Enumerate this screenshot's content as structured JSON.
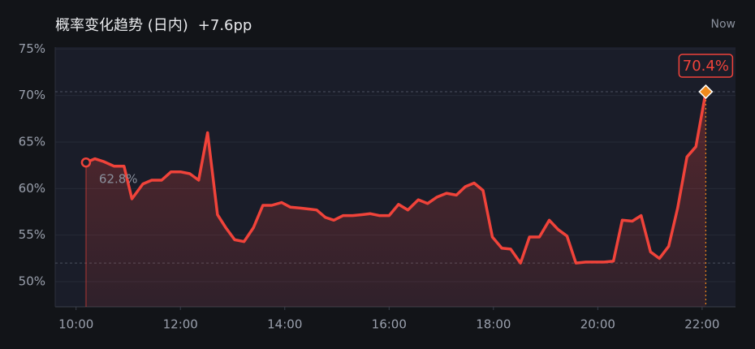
{
  "chart_data": {
    "type": "area",
    "title": "概率变化趋势 (日内)",
    "change": "+7.6pp",
    "now_label": "Now",
    "color": "#f0433a",
    "end_color": "#f08a1c",
    "x": [
      10.19,
      10.36,
      10.53,
      10.73,
      10.92,
      11.07,
      11.28,
      11.45,
      11.64,
      11.82,
      12.0,
      12.18,
      12.35,
      12.52,
      12.71,
      12.87,
      13.04,
      13.22,
      13.4,
      13.58,
      13.75,
      13.94,
      14.11,
      14.3,
      14.47,
      14.61,
      14.78,
      14.94,
      15.12,
      15.3,
      15.48,
      15.64,
      15.81,
      16.0,
      16.18,
      16.36,
      16.56,
      16.74,
      16.92,
      17.1,
      17.29,
      17.46,
      17.63,
      17.8,
      17.98,
      18.16,
      18.33,
      18.52,
      18.69,
      18.88,
      19.07,
      19.24,
      19.41,
      19.58,
      19.77,
      19.94,
      20.12,
      20.3,
      20.47,
      20.66,
      20.83,
      21.01,
      21.18,
      21.36,
      21.53,
      21.71,
      21.88,
      22.07
    ],
    "values": [
      62.8,
      63.2,
      62.9,
      62.4,
      62.4,
      58.9,
      60.5,
      60.9,
      60.9,
      61.8,
      61.8,
      61.6,
      60.9,
      66.0,
      57.2,
      55.8,
      54.5,
      54.3,
      55.8,
      58.2,
      58.2,
      58.5,
      58.0,
      57.9,
      57.8,
      57.7,
      56.9,
      56.6,
      57.1,
      57.1,
      57.2,
      57.3,
      57.1,
      57.1,
      58.3,
      57.7,
      58.8,
      58.4,
      59.1,
      59.5,
      59.3,
      60.2,
      60.6,
      59.8,
      54.8,
      53.6,
      53.5,
      52.0,
      54.8,
      54.8,
      56.6,
      55.6,
      54.9,
      52.0,
      52.1,
      52.1,
      52.1,
      52.2,
      56.6,
      56.5,
      57.1,
      53.2,
      52.5,
      53.8,
      57.9,
      63.4,
      64.5,
      70.4
    ],
    "value_labels": [
      "62.8%",
      null,
      null,
      null,
      null,
      null,
      null,
      null,
      null,
      null,
      null,
      null,
      null,
      null,
      null,
      null,
      null,
      null,
      null,
      null,
      null,
      null,
      null,
      null,
      null,
      null,
      null,
      null,
      null,
      null,
      null,
      null,
      null,
      null,
      null,
      null,
      null,
      null,
      null,
      null,
      null,
      null,
      null,
      null,
      null,
      null,
      null,
      null,
      null,
      null,
      null,
      null,
      null,
      null,
      null,
      null,
      null,
      null,
      null,
      null,
      null,
      null,
      null,
      null,
      null,
      null,
      null,
      "70.4%"
    ],
    "xlim": [
      9.6,
      22.64
    ],
    "xticks": [
      {
        "value": 10,
        "label": "10:00"
      },
      {
        "value": 12,
        "label": "12:00"
      },
      {
        "value": 14,
        "label": "14:00"
      },
      {
        "value": 16,
        "label": "16:00"
      },
      {
        "value": 18,
        "label": "18:00"
      },
      {
        "value": 20,
        "label": "20:00"
      },
      {
        "value": 22,
        "label": "22:00"
      }
    ],
    "ylim": [
      47.3,
      75.2
    ],
    "yticks": [
      {
        "value": 50,
        "label": "50%"
      },
      {
        "value": 55,
        "label": "55%"
      },
      {
        "value": 60,
        "label": "60%"
      },
      {
        "value": 65,
        "label": "65%"
      },
      {
        "value": 70,
        "label": "70%"
      },
      {
        "value": 75,
        "label": "75%"
      }
    ],
    "grid": true
  }
}
